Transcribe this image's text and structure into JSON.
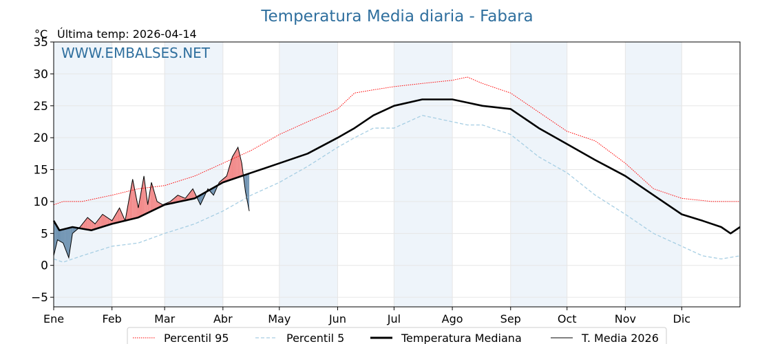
{
  "header": {
    "title": "Temperatura Media diaria - Fabara",
    "unit": "°C",
    "last_temp": "Última temp: 2026-04-14",
    "watermark": "WWW.EMBALSES.NET"
  },
  "colors": {
    "p95": "#ff0000",
    "p5": "#a6cee3",
    "median": "#000000",
    "current": "#000000",
    "above": "#f28b8b",
    "below": "#6f93b2",
    "band": "#eef4fa"
  },
  "chart_data": {
    "type": "line",
    "title": "Temperatura Media diaria - Fabara",
    "ylabel": "°C",
    "ylim": [
      -6.5,
      35
    ],
    "xlim": [
      0,
      365
    ],
    "yticks": [
      -5,
      0,
      5,
      10,
      15,
      20,
      25,
      30,
      35
    ],
    "month_labels": [
      "Ene",
      "Feb",
      "Mar",
      "Abr",
      "May",
      "Jun",
      "Jul",
      "Ago",
      "Sep",
      "Oct",
      "Nov",
      "Dic"
    ],
    "month_starts": [
      0,
      31,
      59,
      90,
      120,
      151,
      181,
      212,
      243,
      273,
      304,
      334
    ],
    "grid": true,
    "legend_position": "bottom",
    "series": [
      {
        "name": "Percentil 95",
        "style": "dotted-red",
        "x": [
          0,
          5,
          15,
          31,
          45,
          59,
          75,
          90,
          105,
          120,
          135,
          151,
          160,
          170,
          181,
          196,
          212,
          220,
          228,
          243,
          258,
          273,
          288,
          304,
          319,
          334,
          350,
          365
        ],
        "values": [
          9.5,
          10,
          10,
          11,
          12,
          12.5,
          14,
          16,
          18,
          20.5,
          22.5,
          24.5,
          27,
          27.5,
          28,
          28.5,
          29,
          29.5,
          28.5,
          27,
          24,
          21,
          19.5,
          16,
          12,
          10.5,
          10,
          10
        ]
      },
      {
        "name": "Percentil 5",
        "style": "dashed-lightblue",
        "x": [
          0,
          5,
          15,
          31,
          45,
          59,
          75,
          90,
          105,
          120,
          135,
          151,
          160,
          170,
          181,
          196,
          212,
          220,
          228,
          243,
          258,
          273,
          288,
          304,
          319,
          334,
          345,
          355,
          365
        ],
        "values": [
          1,
          0.5,
          1.5,
          3,
          3.5,
          5,
          6.5,
          8.5,
          11,
          13,
          15.5,
          18.5,
          20,
          21.5,
          21.5,
          23.5,
          22.5,
          22,
          22,
          20.5,
          17,
          14.5,
          11,
          8,
          5,
          3,
          1.5,
          1,
          1.5
        ]
      },
      {
        "name": "Temperatura Mediana",
        "style": "thick-black",
        "x": [
          0,
          3,
          10,
          20,
          31,
          45,
          59,
          75,
          90,
          105,
          120,
          135,
          151,
          160,
          170,
          181,
          196,
          212,
          220,
          228,
          243,
          258,
          273,
          288,
          304,
          319,
          334,
          345,
          355,
          360,
          365
        ],
        "values": [
          7,
          5.5,
          6,
          5.5,
          6.5,
          7.5,
          9.5,
          10.5,
          13,
          14.5,
          16,
          17.5,
          20,
          21.5,
          23.5,
          25,
          26,
          26,
          25.5,
          25,
          24.5,
          21.5,
          19,
          16.5,
          14,
          11,
          8,
          7,
          6,
          5,
          6
        ]
      },
      {
        "name": "T. Media 2026",
        "style": "thin-black",
        "x": [
          0,
          2,
          5,
          8,
          10,
          14,
          18,
          22,
          26,
          31,
          35,
          38,
          42,
          45,
          48,
          50,
          52,
          55,
          58,
          62,
          66,
          70,
          74,
          78,
          82,
          85,
          88,
          92,
          95,
          98,
          100,
          102,
          104
        ],
        "values": [
          1.5,
          4,
          3.5,
          1.2,
          5,
          6,
          7.5,
          6.5,
          8,
          7,
          9,
          7,
          13.5,
          9,
          14,
          9.5,
          13,
          10,
          9.5,
          10,
          11,
          10.5,
          12,
          9.5,
          12,
          11,
          13,
          14,
          17,
          18.5,
          16,
          11.5,
          8.5
        ]
      }
    ]
  },
  "legend": {
    "items": [
      {
        "label": "Percentil 95",
        "style": "dotted-red"
      },
      {
        "label": "Percentil 5",
        "style": "dashed-lightblue"
      },
      {
        "label": "Temperatura Mediana",
        "style": "thick-black"
      },
      {
        "label": "T. Media 2026",
        "style": "thin-black"
      }
    ]
  }
}
